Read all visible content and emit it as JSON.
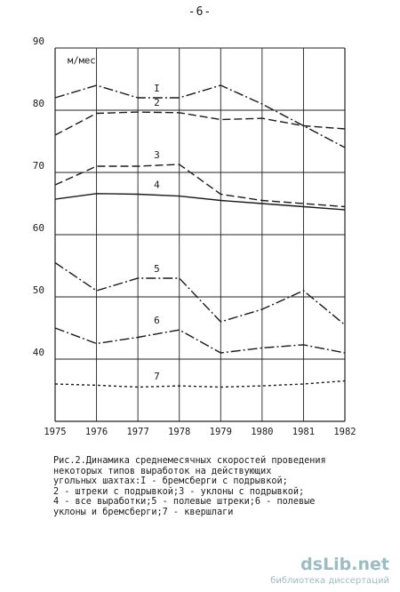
{
  "page_number": "-6-",
  "chart_data": {
    "type": "line",
    "ylabel": "м/мес",
    "ylim": [
      30,
      90
    ],
    "yticks": [
      40,
      50,
      60,
      70,
      80,
      90
    ],
    "grid": "horizontal",
    "categories": [
      "1975",
      "1976",
      "1977",
      "1978",
      "1979",
      "1980",
      "1981",
      "1982"
    ],
    "series": [
      {
        "name": "I",
        "dash": "dash-dot",
        "values": [
          82,
          84,
          82,
          82,
          84,
          81,
          77.5,
          74
        ]
      },
      {
        "name": "2",
        "dash": "long-dash",
        "values": [
          76,
          79.5,
          79.7,
          79.6,
          78.5,
          78.7,
          77.5,
          77
        ]
      },
      {
        "name": "3",
        "dash": "long-dash",
        "values": [
          68,
          71,
          71,
          71.3,
          66.5,
          65.5,
          65,
          64.5
        ]
      },
      {
        "name": "4",
        "dash": "solid",
        "values": [
          65.7,
          66.6,
          66.5,
          66.2,
          65.5,
          65,
          64.5,
          64
        ]
      },
      {
        "name": "5",
        "dash": "dash-dot",
        "values": [
          55.5,
          51,
          53,
          53,
          46,
          48,
          51,
          45.5
        ]
      },
      {
        "name": "6",
        "dash": "dash-dot",
        "values": [
          45,
          42.5,
          43.5,
          44.7,
          41,
          41.8,
          42.3,
          41
        ]
      },
      {
        "name": "7",
        "dash": "dotted",
        "values": [
          36,
          35.8,
          35.5,
          35.7,
          35.5,
          35.7,
          36,
          36.5
        ]
      }
    ]
  },
  "caption": {
    "text": "Рис.2.Динамика среднемесячных скоростей проведения\n      некоторых типов выработок на действующих\n      угольных шахтах:I - бремсберги с подрывкой;\n      2 - штреки с подрывкой;3 - уклоны с подрывкой;\n      4 - все выработки;5 - полевые штреки;6 - полевые\n      уклоны и бремсберги;7 - квершлаги"
  },
  "watermark": {
    "logo": "dsLib.net",
    "subtitle": "библиотека диссертаций"
  }
}
